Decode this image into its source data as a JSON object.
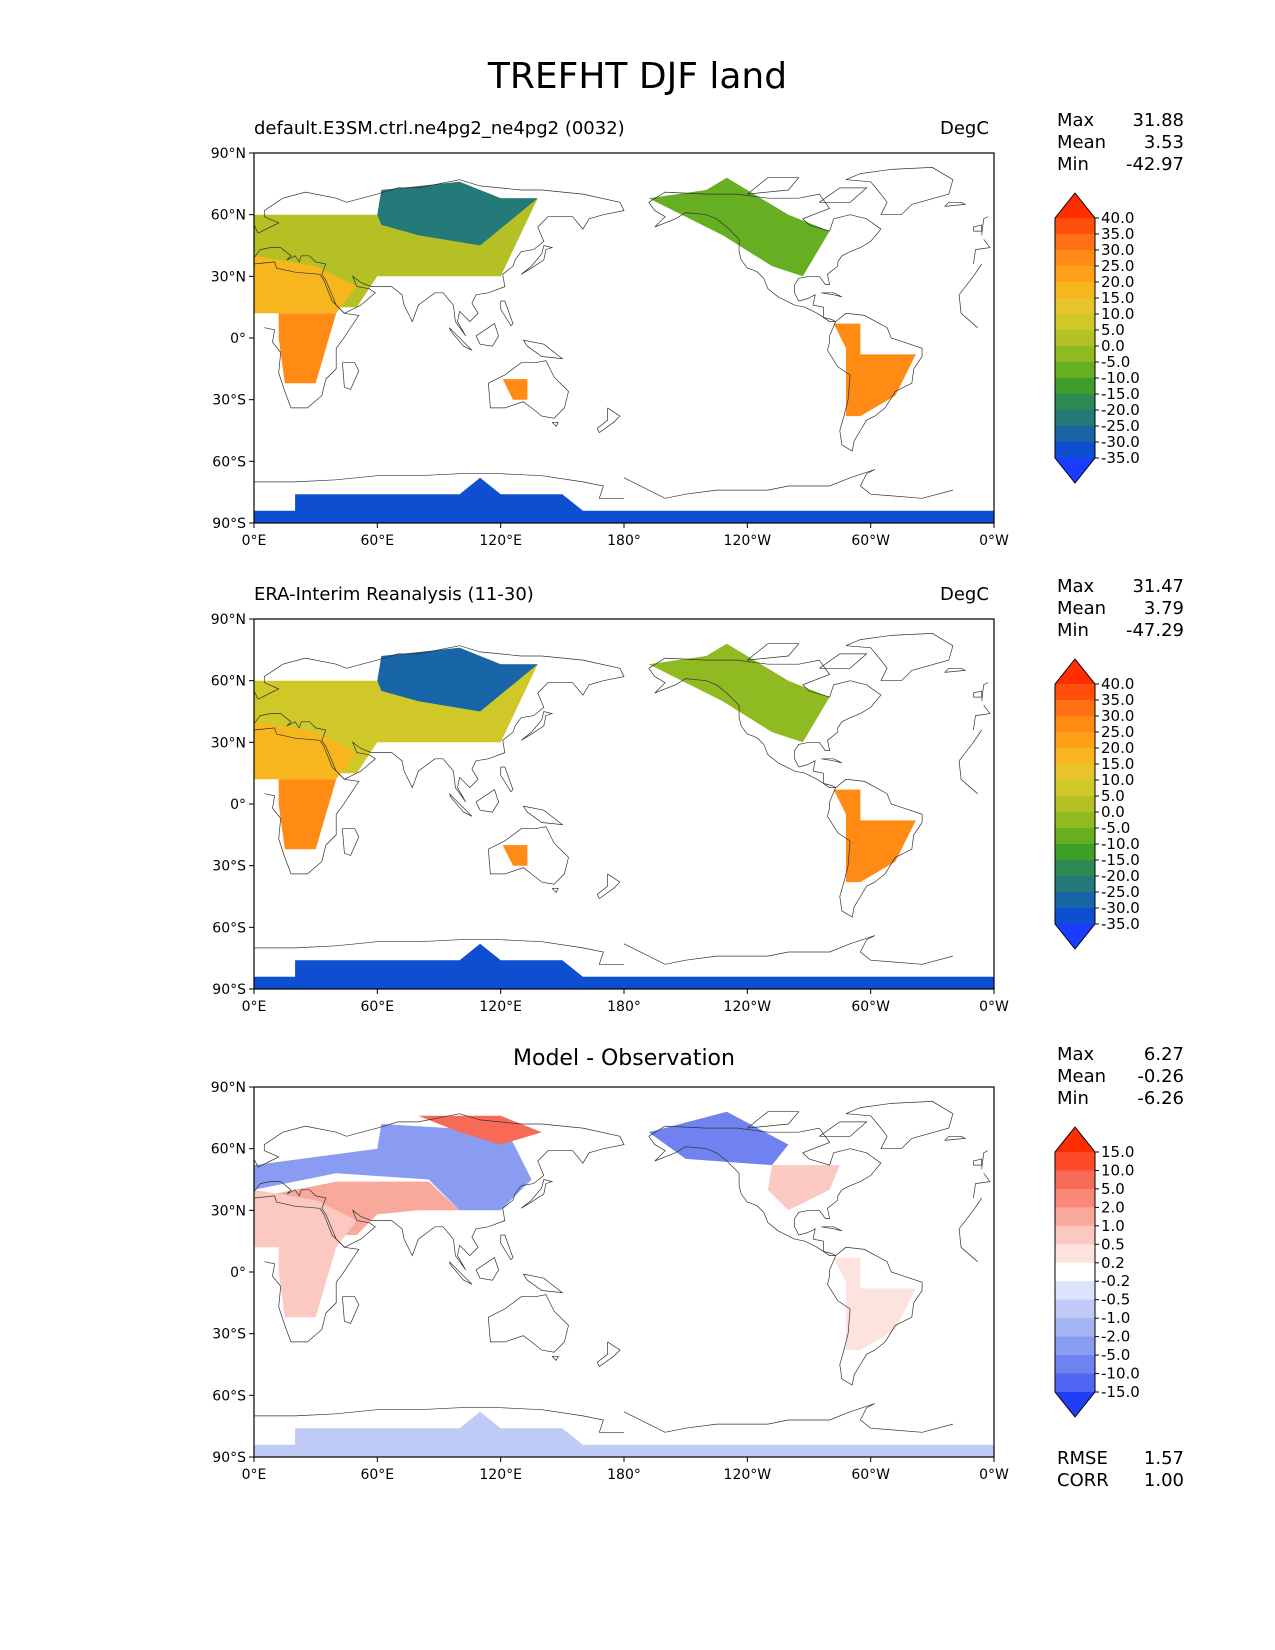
{
  "title": "TREFHT DJF land",
  "lat_ticks": [
    "90°N",
    "60°N",
    "30°N",
    "0°",
    "30°S",
    "60°S",
    "90°S"
  ],
  "lon_ticks": [
    "0°E",
    "60°E",
    "120°E",
    "180°",
    "120°W",
    "60°W",
    "0°W"
  ],
  "panels": [
    {
      "title_left": "default.E3SM.ctrl.ne4pg2_ne4pg2 (0032)",
      "title_right": "DegC",
      "stats": {
        "max_label": "Max",
        "max": "31.88",
        "mean_label": "Mean",
        "mean": "3.53",
        "min_label": "Min",
        "min": "-42.97"
      }
    },
    {
      "title_left": "ERA-Interim Reanalysis (11-30)",
      "title_right": "DegC",
      "stats": {
        "max_label": "Max",
        "max": "31.47",
        "mean_label": "Mean",
        "mean": "3.79",
        "min_label": "Min",
        "min": "-47.29"
      }
    },
    {
      "title_center": "Model - Observation",
      "stats": {
        "max_label": "Max",
        "max": "6.27",
        "mean_label": "Mean",
        "mean": "-0.26",
        "min_label": "Min",
        "min": "-6.26"
      },
      "rmse_label": "RMSE",
      "rmse": "1.57",
      "corr_label": "CORR",
      "corr": "1.00"
    }
  ],
  "colorbar_main": {
    "labels": [
      "40.0",
      "35.0",
      "30.0",
      "25.0",
      "20.0",
      "15.0",
      "10.0",
      "5.0",
      "0.0",
      "-5.0",
      "-10.0",
      "-15.0",
      "-20.0",
      "-25.0",
      "-30.0",
      "-35.0"
    ],
    "colors": [
      "#ff2d00",
      "#ff4f0c",
      "#ff6f14",
      "#ff8a14",
      "#ffa01a",
      "#f8b61e",
      "#e8c42a",
      "#cfc828",
      "#b5c024",
      "#8fba22",
      "#66ae22",
      "#3f9e2a",
      "#2e8a55",
      "#237a78",
      "#1865a8",
      "#0d4fd0",
      "#1a3cff"
    ]
  },
  "colorbar_diff": {
    "labels": [
      "15.0",
      "10.0",
      "5.0",
      "2.0",
      "1.0",
      "0.5",
      "0.2",
      "-0.2",
      "-0.5",
      "-1.0",
      "-2.0",
      "-5.0",
      "-10.0",
      "-15.0"
    ],
    "colors": [
      "#ff2d00",
      "#ff4a2a",
      "#f86a58",
      "#f98878",
      "#f9a99c",
      "#fbc9c1",
      "#fde3de",
      "#ffffff",
      "#dde3fb",
      "#bfcaf7",
      "#a5b4f3",
      "#8a9cf1",
      "#6f82f0",
      "#4f66f2",
      "#1f3df5"
    ]
  },
  "regions": {
    "main1": [
      {
        "name": "eurasia",
        "color": "#b5c024"
      },
      {
        "name": "siberia",
        "color": "#237a78"
      },
      {
        "name": "n-africa",
        "color": "#f8b61e"
      },
      {
        "name": "s-africa",
        "color": "#ff8a14"
      },
      {
        "name": "australia",
        "color": "#ff8a14"
      },
      {
        "name": "n-america",
        "color": "#66ae22"
      },
      {
        "name": "s-america",
        "color": "#ff8a14"
      },
      {
        "name": "antarctica",
        "color": "#0d4fd0"
      }
    ],
    "main2": [
      {
        "name": "eurasia",
        "color": "#cfc828"
      },
      {
        "name": "siberia",
        "color": "#1865a8"
      },
      {
        "name": "n-africa",
        "color": "#f8b61e"
      },
      {
        "name": "s-africa",
        "color": "#ff8a14"
      },
      {
        "name": "australia",
        "color": "#ff8a14"
      },
      {
        "name": "n-america",
        "color": "#8fba22"
      },
      {
        "name": "s-america",
        "color": "#ff8a14"
      },
      {
        "name": "antarctica",
        "color": "#0d4fd0"
      }
    ],
    "diff": [
      {
        "name": "eurasia-north",
        "color": "#8a9cf1"
      },
      {
        "name": "eurasia-south",
        "color": "#f9a99c"
      },
      {
        "name": "siberia-east",
        "color": "#f86a58"
      },
      {
        "name": "n-africa",
        "color": "#fbc9c1"
      },
      {
        "name": "s-africa",
        "color": "#fbc9c1"
      },
      {
        "name": "n-america-north",
        "color": "#6f82f0"
      },
      {
        "name": "n-america-south",
        "color": "#fbc9c1"
      },
      {
        "name": "s-america",
        "color": "#fde3de"
      },
      {
        "name": "antarctica",
        "color": "#bfcaf7"
      }
    ]
  }
}
